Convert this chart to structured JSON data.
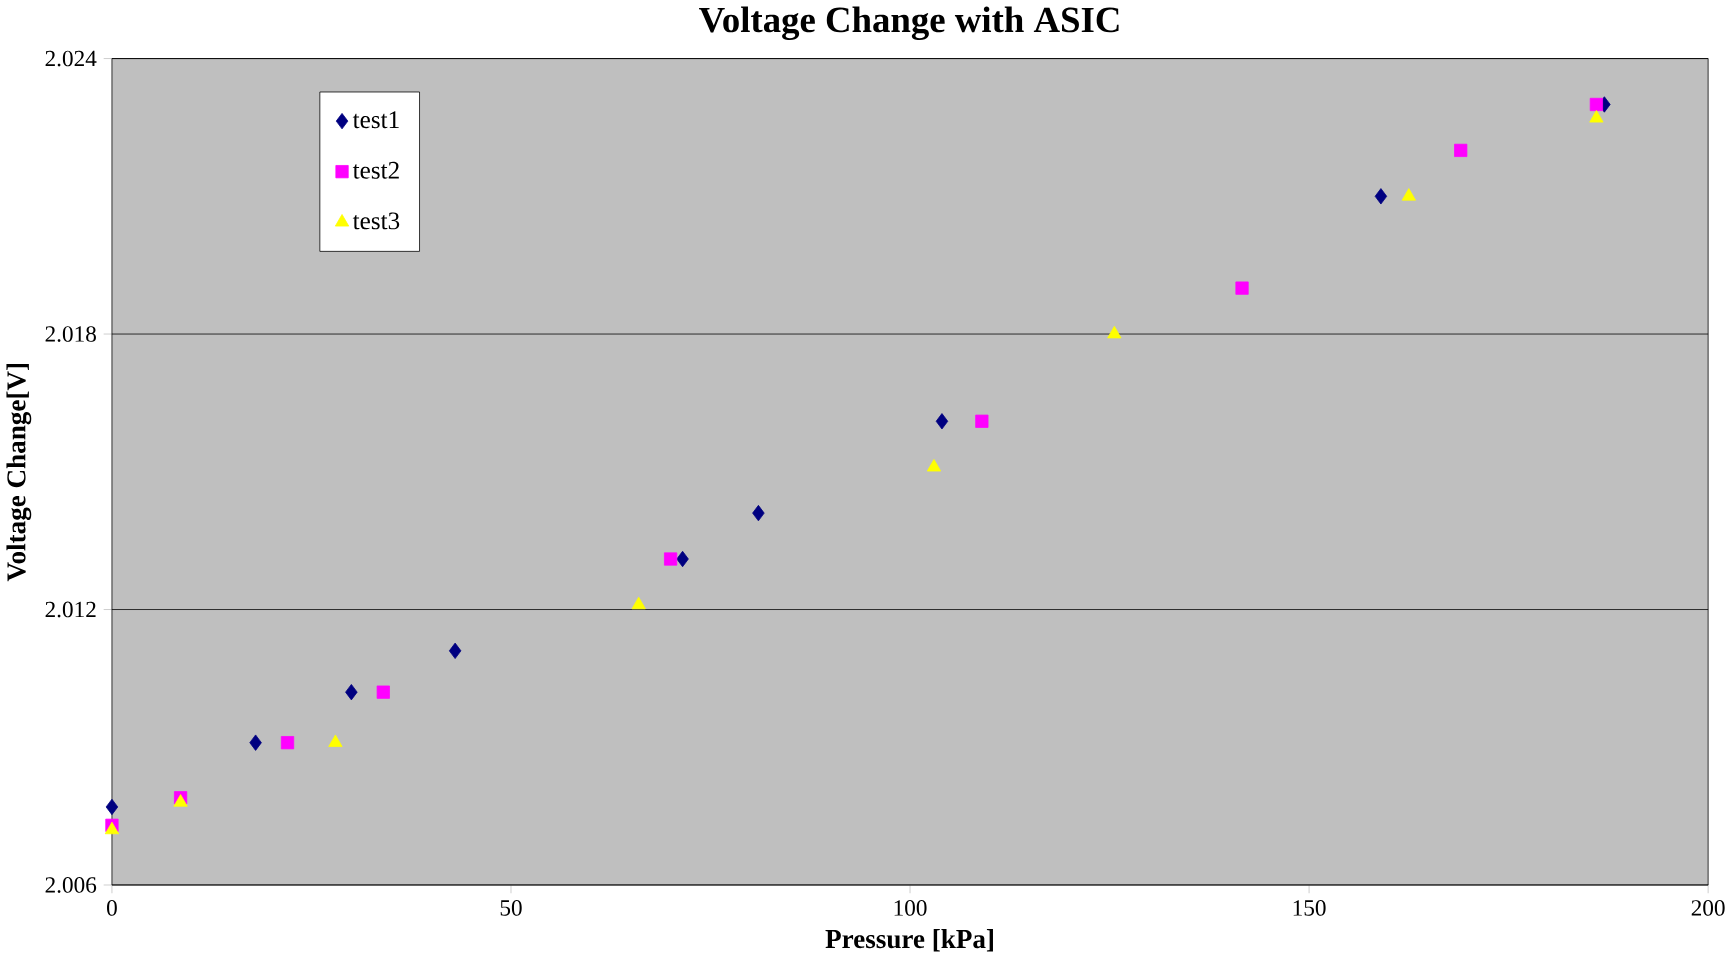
{
  "chart_data": {
    "type": "scatter",
    "title": "Voltage Change with ASIC",
    "xlabel": "Pressure [kPa]",
    "ylabel": "Voltage Change[V]",
    "xlim": [
      0,
      200
    ],
    "xticks": [
      0,
      50,
      100,
      150,
      200
    ],
    "ylim": [
      2.006,
      2.024
    ],
    "yticks": [
      2.006,
      2.012,
      2.018,
      2.024
    ],
    "grid": "y",
    "legend": "top left",
    "series": [
      {
        "name": "test1",
        "color": "#000080",
        "marker": "diamond",
        "x": [
          0,
          18,
          30,
          43,
          71.5,
          81,
          104,
          159,
          187
        ],
        "values": [
          2.0077,
          2.0091,
          2.0102,
          2.0111,
          2.0131,
          2.0141,
          2.0161,
          2.021,
          2.023
        ]
      },
      {
        "name": "test2",
        "color": "#ff00ff",
        "marker": "square",
        "x": [
          0,
          8.6,
          22,
          34,
          70,
          109,
          141.6,
          169,
          186
        ],
        "values": [
          2.0073,
          2.0079,
          2.0091,
          2.0102,
          2.0131,
          2.0161,
          2.019,
          2.022,
          2.023
        ]
      },
      {
        "name": "test3",
        "color": "#ffff00",
        "marker": "triangle",
        "x": [
          0,
          8.6,
          28,
          66,
          103,
          125.6,
          162.5,
          186
        ],
        "values": [
          2.0072,
          2.0078,
          2.0091,
          2.0121,
          2.0151,
          2.018,
          2.021,
          2.0227
        ]
      }
    ]
  }
}
